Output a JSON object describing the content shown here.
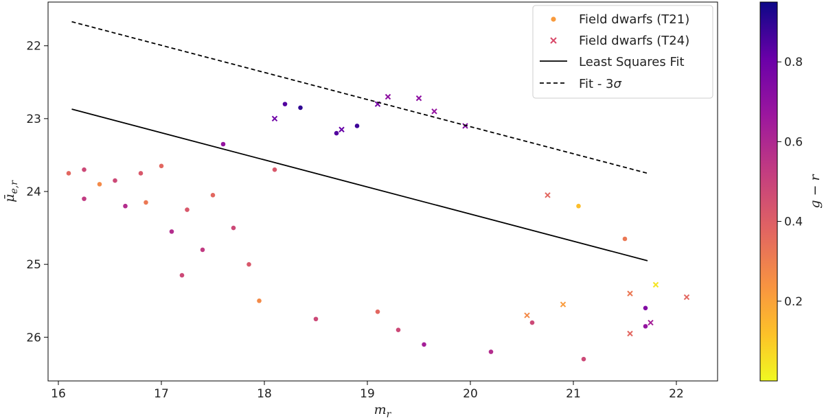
{
  "chart_data": {
    "type": "scatter",
    "xlabel": "m_r",
    "ylabel": "μ̄_e,r",
    "xlim": [
      15.9,
      22.4
    ],
    "ylim": [
      26.6,
      21.4
    ],
    "y_inverted": true,
    "xticks": [
      "16",
      "17",
      "18",
      "19",
      "20",
      "21",
      "22"
    ],
    "yticks": [
      "22",
      "23",
      "24",
      "25",
      "26"
    ],
    "grid": false,
    "legend_position": "top-right",
    "colorbar": {
      "label": "g − r",
      "range": [
        0.0,
        0.95
      ],
      "ticks": [
        "0.2",
        "0.4",
        "0.6",
        "0.8"
      ],
      "colormap": "plasma_r"
    },
    "series": [
      {
        "name": "Field dwarfs (T21)",
        "marker": "dot",
        "legend_color": "#f89a3c",
        "points": [
          {
            "x": 16.1,
            "y": 23.75,
            "c": 0.4
          },
          {
            "x": 16.25,
            "y": 23.7,
            "c": 0.5
          },
          {
            "x": 16.25,
            "y": 24.1,
            "c": 0.55
          },
          {
            "x": 16.4,
            "y": 23.9,
            "c": 0.3
          },
          {
            "x": 16.55,
            "y": 23.85,
            "c": 0.5
          },
          {
            "x": 16.65,
            "y": 24.2,
            "c": 0.6
          },
          {
            "x": 16.8,
            "y": 23.75,
            "c": 0.45
          },
          {
            "x": 16.85,
            "y": 24.15,
            "c": 0.35
          },
          {
            "x": 17.0,
            "y": 23.65,
            "c": 0.4
          },
          {
            "x": 17.1,
            "y": 24.55,
            "c": 0.6
          },
          {
            "x": 17.2,
            "y": 25.15,
            "c": 0.5
          },
          {
            "x": 17.25,
            "y": 24.25,
            "c": 0.45
          },
          {
            "x": 17.4,
            "y": 24.8,
            "c": 0.55
          },
          {
            "x": 17.6,
            "y": 23.35,
            "c": 0.7
          },
          {
            "x": 17.5,
            "y": 24.05,
            "c": 0.4
          },
          {
            "x": 17.7,
            "y": 24.5,
            "c": 0.5
          },
          {
            "x": 17.85,
            "y": 25.0,
            "c": 0.45
          },
          {
            "x": 17.95,
            "y": 25.5,
            "c": 0.3
          },
          {
            "x": 18.1,
            "y": 23.7,
            "c": 0.45
          },
          {
            "x": 18.2,
            "y": 22.8,
            "c": 0.85
          },
          {
            "x": 18.35,
            "y": 22.85,
            "c": 0.9
          },
          {
            "x": 18.5,
            "y": 25.75,
            "c": 0.5
          },
          {
            "x": 18.7,
            "y": 23.2,
            "c": 0.85
          },
          {
            "x": 18.9,
            "y": 23.1,
            "c": 0.88
          },
          {
            "x": 19.1,
            "y": 25.65,
            "c": 0.4
          },
          {
            "x": 19.3,
            "y": 25.9,
            "c": 0.5
          },
          {
            "x": 19.55,
            "y": 26.1,
            "c": 0.65
          },
          {
            "x": 20.2,
            "y": 26.2,
            "c": 0.6
          },
          {
            "x": 20.6,
            "y": 25.8,
            "c": 0.5
          },
          {
            "x": 21.1,
            "y": 26.3,
            "c": 0.5
          },
          {
            "x": 21.05,
            "y": 24.2,
            "c": 0.15
          },
          {
            "x": 21.5,
            "y": 24.65,
            "c": 0.35
          },
          {
            "x": 21.7,
            "y": 25.6,
            "c": 0.75
          },
          {
            "x": 21.7,
            "y": 25.85,
            "c": 0.7
          }
        ]
      },
      {
        "name": "Field dwarfs (T24)",
        "marker": "x",
        "legend_color": "#d94a6a",
        "points": [
          {
            "x": 18.1,
            "y": 23.0,
            "c": 0.8
          },
          {
            "x": 18.75,
            "y": 23.15,
            "c": 0.82
          },
          {
            "x": 19.1,
            "y": 22.8,
            "c": 0.78
          },
          {
            "x": 19.2,
            "y": 22.7,
            "c": 0.72
          },
          {
            "x": 19.5,
            "y": 22.72,
            "c": 0.72
          },
          {
            "x": 19.65,
            "y": 22.9,
            "c": 0.7
          },
          {
            "x": 19.95,
            "y": 23.1,
            "c": 0.75
          },
          {
            "x": 20.75,
            "y": 24.05,
            "c": 0.4
          },
          {
            "x": 21.55,
            "y": 25.4,
            "c": 0.35
          },
          {
            "x": 21.55,
            "y": 25.95,
            "c": 0.4
          },
          {
            "x": 21.75,
            "y": 25.8,
            "c": 0.65
          },
          {
            "x": 21.8,
            "y": 25.28,
            "c": 0.05
          },
          {
            "x": 22.1,
            "y": 25.45,
            "c": 0.4
          },
          {
            "x": 20.55,
            "y": 25.7,
            "c": 0.3
          },
          {
            "x": 20.9,
            "y": 25.55,
            "c": 0.25
          }
        ]
      },
      {
        "name": "Least Squares Fit",
        "type": "line",
        "style": "solid",
        "color": "#000000",
        "x": [
          16.13,
          21.72
        ],
        "y": [
          22.87,
          24.95
        ]
      },
      {
        "name": "Fit - 3σ",
        "type": "line",
        "style": "dashed",
        "color": "#000000",
        "x": [
          16.13,
          21.72
        ],
        "y": [
          21.67,
          23.75
        ]
      }
    ]
  }
}
